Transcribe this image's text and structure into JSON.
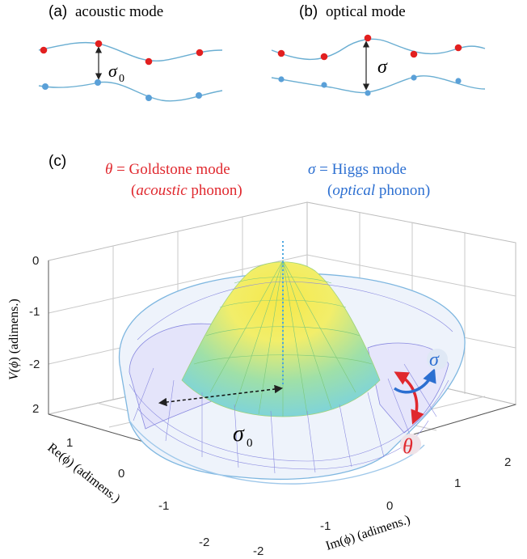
{
  "panel_a": {
    "tag": "(a)",
    "title": "acoustic mode",
    "sigma_label": "σ",
    "sigma_sub": "0"
  },
  "panel_b": {
    "tag": "(b)",
    "title": "optical mode",
    "sigma_label": "σ"
  },
  "panel_c": {
    "tag": "(c)",
    "goldstone": {
      "symbol": "θ",
      "eq": " = Goldstone mode",
      "paren_open": "(",
      "italic": "acoustic",
      "rest": " phonon)",
      "color": "#e0282e"
    },
    "higgs": {
      "symbol": "σ",
      "eq": " = Higgs mode",
      "paren_open": "(",
      "italic": "optical",
      "rest": " phonon)",
      "color": "#2c6fd1"
    },
    "surface_sigma": "σ",
    "surface_theta": "θ",
    "sigma0_label": "σ",
    "sigma0_sub": "0",
    "z_axis": {
      "label_pre": "V(",
      "label_phi": "ϕ",
      "label_post": ") (adimens.)",
      "ticks": [
        "0",
        "-1",
        "-2"
      ]
    },
    "x_axis": {
      "label": "Im(ϕ) (adimens.)",
      "ticks": [
        "-2",
        "-1",
        "0",
        "1",
        "2"
      ]
    },
    "y_axis": {
      "label": "Re(ϕ) (adimens.)",
      "ticks": [
        "2",
        "1",
        "0",
        "-1",
        "-2"
      ]
    }
  },
  "colors": {
    "chain": "#6aaed2",
    "red_atom": "#e22020",
    "blue_atom": "#5aa0d8",
    "grid": "#c9c9c9"
  }
}
